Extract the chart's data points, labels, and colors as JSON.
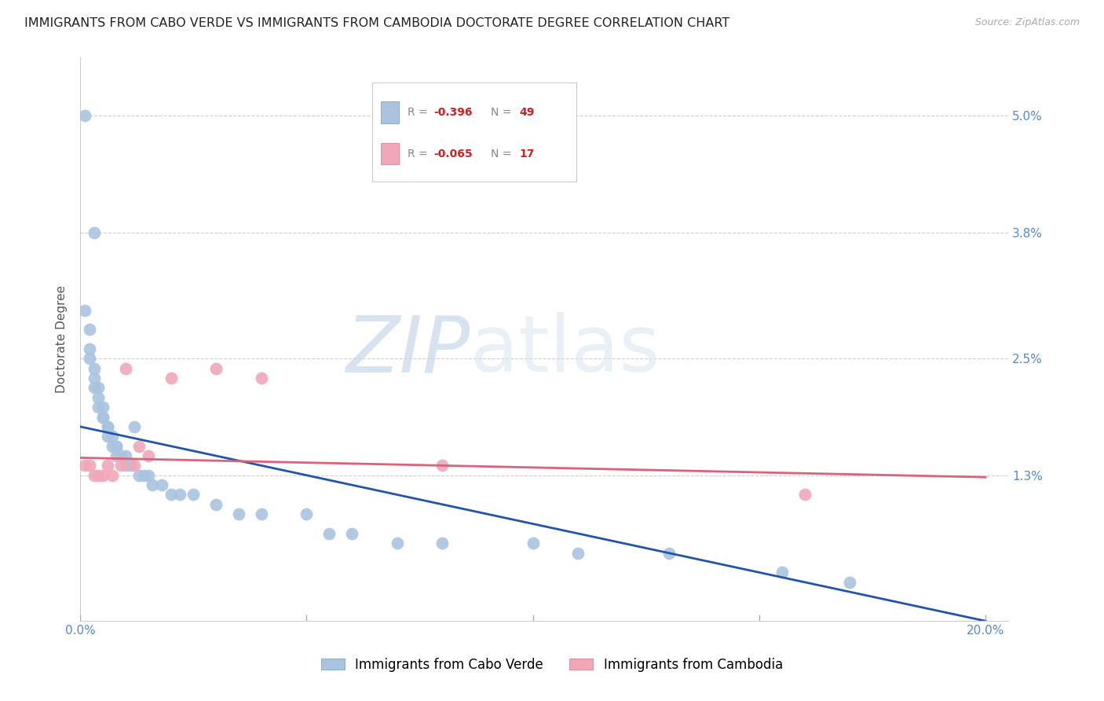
{
  "title": "IMMIGRANTS FROM CABO VERDE VS IMMIGRANTS FROM CAMBODIA DOCTORATE DEGREE CORRELATION CHART",
  "source": "Source: ZipAtlas.com",
  "ylabel": "Doctorate Degree",
  "x_ticks": [
    0.0,
    0.05,
    0.1,
    0.15,
    0.2
  ],
  "x_tick_labels": [
    "0.0%",
    "",
    "",
    "",
    "20.0%"
  ],
  "y_ticks": [
    0.0,
    0.013,
    0.025,
    0.038,
    0.05
  ],
  "y_tick_labels": [
    "",
    "1.3%",
    "2.5%",
    "3.8%",
    "5.0%"
  ],
  "xlim": [
    0.0,
    0.205
  ],
  "ylim": [
    -0.002,
    0.056
  ],
  "cabo_verde_color": "#aac4e0",
  "cambodia_color": "#f0a8b8",
  "cabo_verde_line_color": "#2255aa",
  "cambodia_line_color": "#e0607a",
  "cabo_verde_x": [
    0.001,
    0.003,
    0.001,
    0.002,
    0.002,
    0.002,
    0.003,
    0.003,
    0.003,
    0.004,
    0.004,
    0.004,
    0.005,
    0.005,
    0.005,
    0.006,
    0.006,
    0.006,
    0.007,
    0.007,
    0.008,
    0.008,
    0.008,
    0.009,
    0.01,
    0.01,
    0.011,
    0.012,
    0.013,
    0.014,
    0.015,
    0.016,
    0.018,
    0.02,
    0.022,
    0.025,
    0.03,
    0.035,
    0.04,
    0.05,
    0.055,
    0.06,
    0.07,
    0.08,
    0.1,
    0.11,
    0.13,
    0.155,
    0.17
  ],
  "cabo_verde_y": [
    0.05,
    0.038,
    0.03,
    0.028,
    0.026,
    0.025,
    0.024,
    0.023,
    0.022,
    0.022,
    0.021,
    0.02,
    0.02,
    0.019,
    0.019,
    0.018,
    0.018,
    0.017,
    0.017,
    0.016,
    0.016,
    0.016,
    0.015,
    0.015,
    0.015,
    0.014,
    0.014,
    0.018,
    0.013,
    0.013,
    0.013,
    0.012,
    0.012,
    0.011,
    0.011,
    0.011,
    0.01,
    0.009,
    0.009,
    0.009,
    0.007,
    0.007,
    0.006,
    0.006,
    0.006,
    0.005,
    0.005,
    0.003,
    0.002
  ],
  "cambodia_x": [
    0.001,
    0.002,
    0.003,
    0.004,
    0.005,
    0.006,
    0.007,
    0.009,
    0.01,
    0.012,
    0.013,
    0.015,
    0.02,
    0.03,
    0.04,
    0.08,
    0.16
  ],
  "cambodia_y": [
    0.014,
    0.014,
    0.013,
    0.013,
    0.013,
    0.014,
    0.013,
    0.014,
    0.024,
    0.014,
    0.016,
    0.015,
    0.023,
    0.024,
    0.023,
    0.014,
    0.011
  ],
  "trend_cv_x0": 0.0,
  "trend_cv_y0": 0.018,
  "trend_cv_x1": 0.2,
  "trend_cv_y1": -0.002,
  "trend_cam_x0": 0.0,
  "trend_cam_y0": 0.0148,
  "trend_cam_x1": 0.2,
  "trend_cam_y1": 0.0128,
  "watermark": "ZIPatlas",
  "background_color": "#ffffff",
  "grid_color": "#d0d0d0",
  "title_fontsize": 11.5,
  "axis_label_fontsize": 11,
  "tick_fontsize": 11,
  "legend_fontsize": 11,
  "legend_R_color": "#cc2222",
  "legend_N_color": "#cc2222"
}
